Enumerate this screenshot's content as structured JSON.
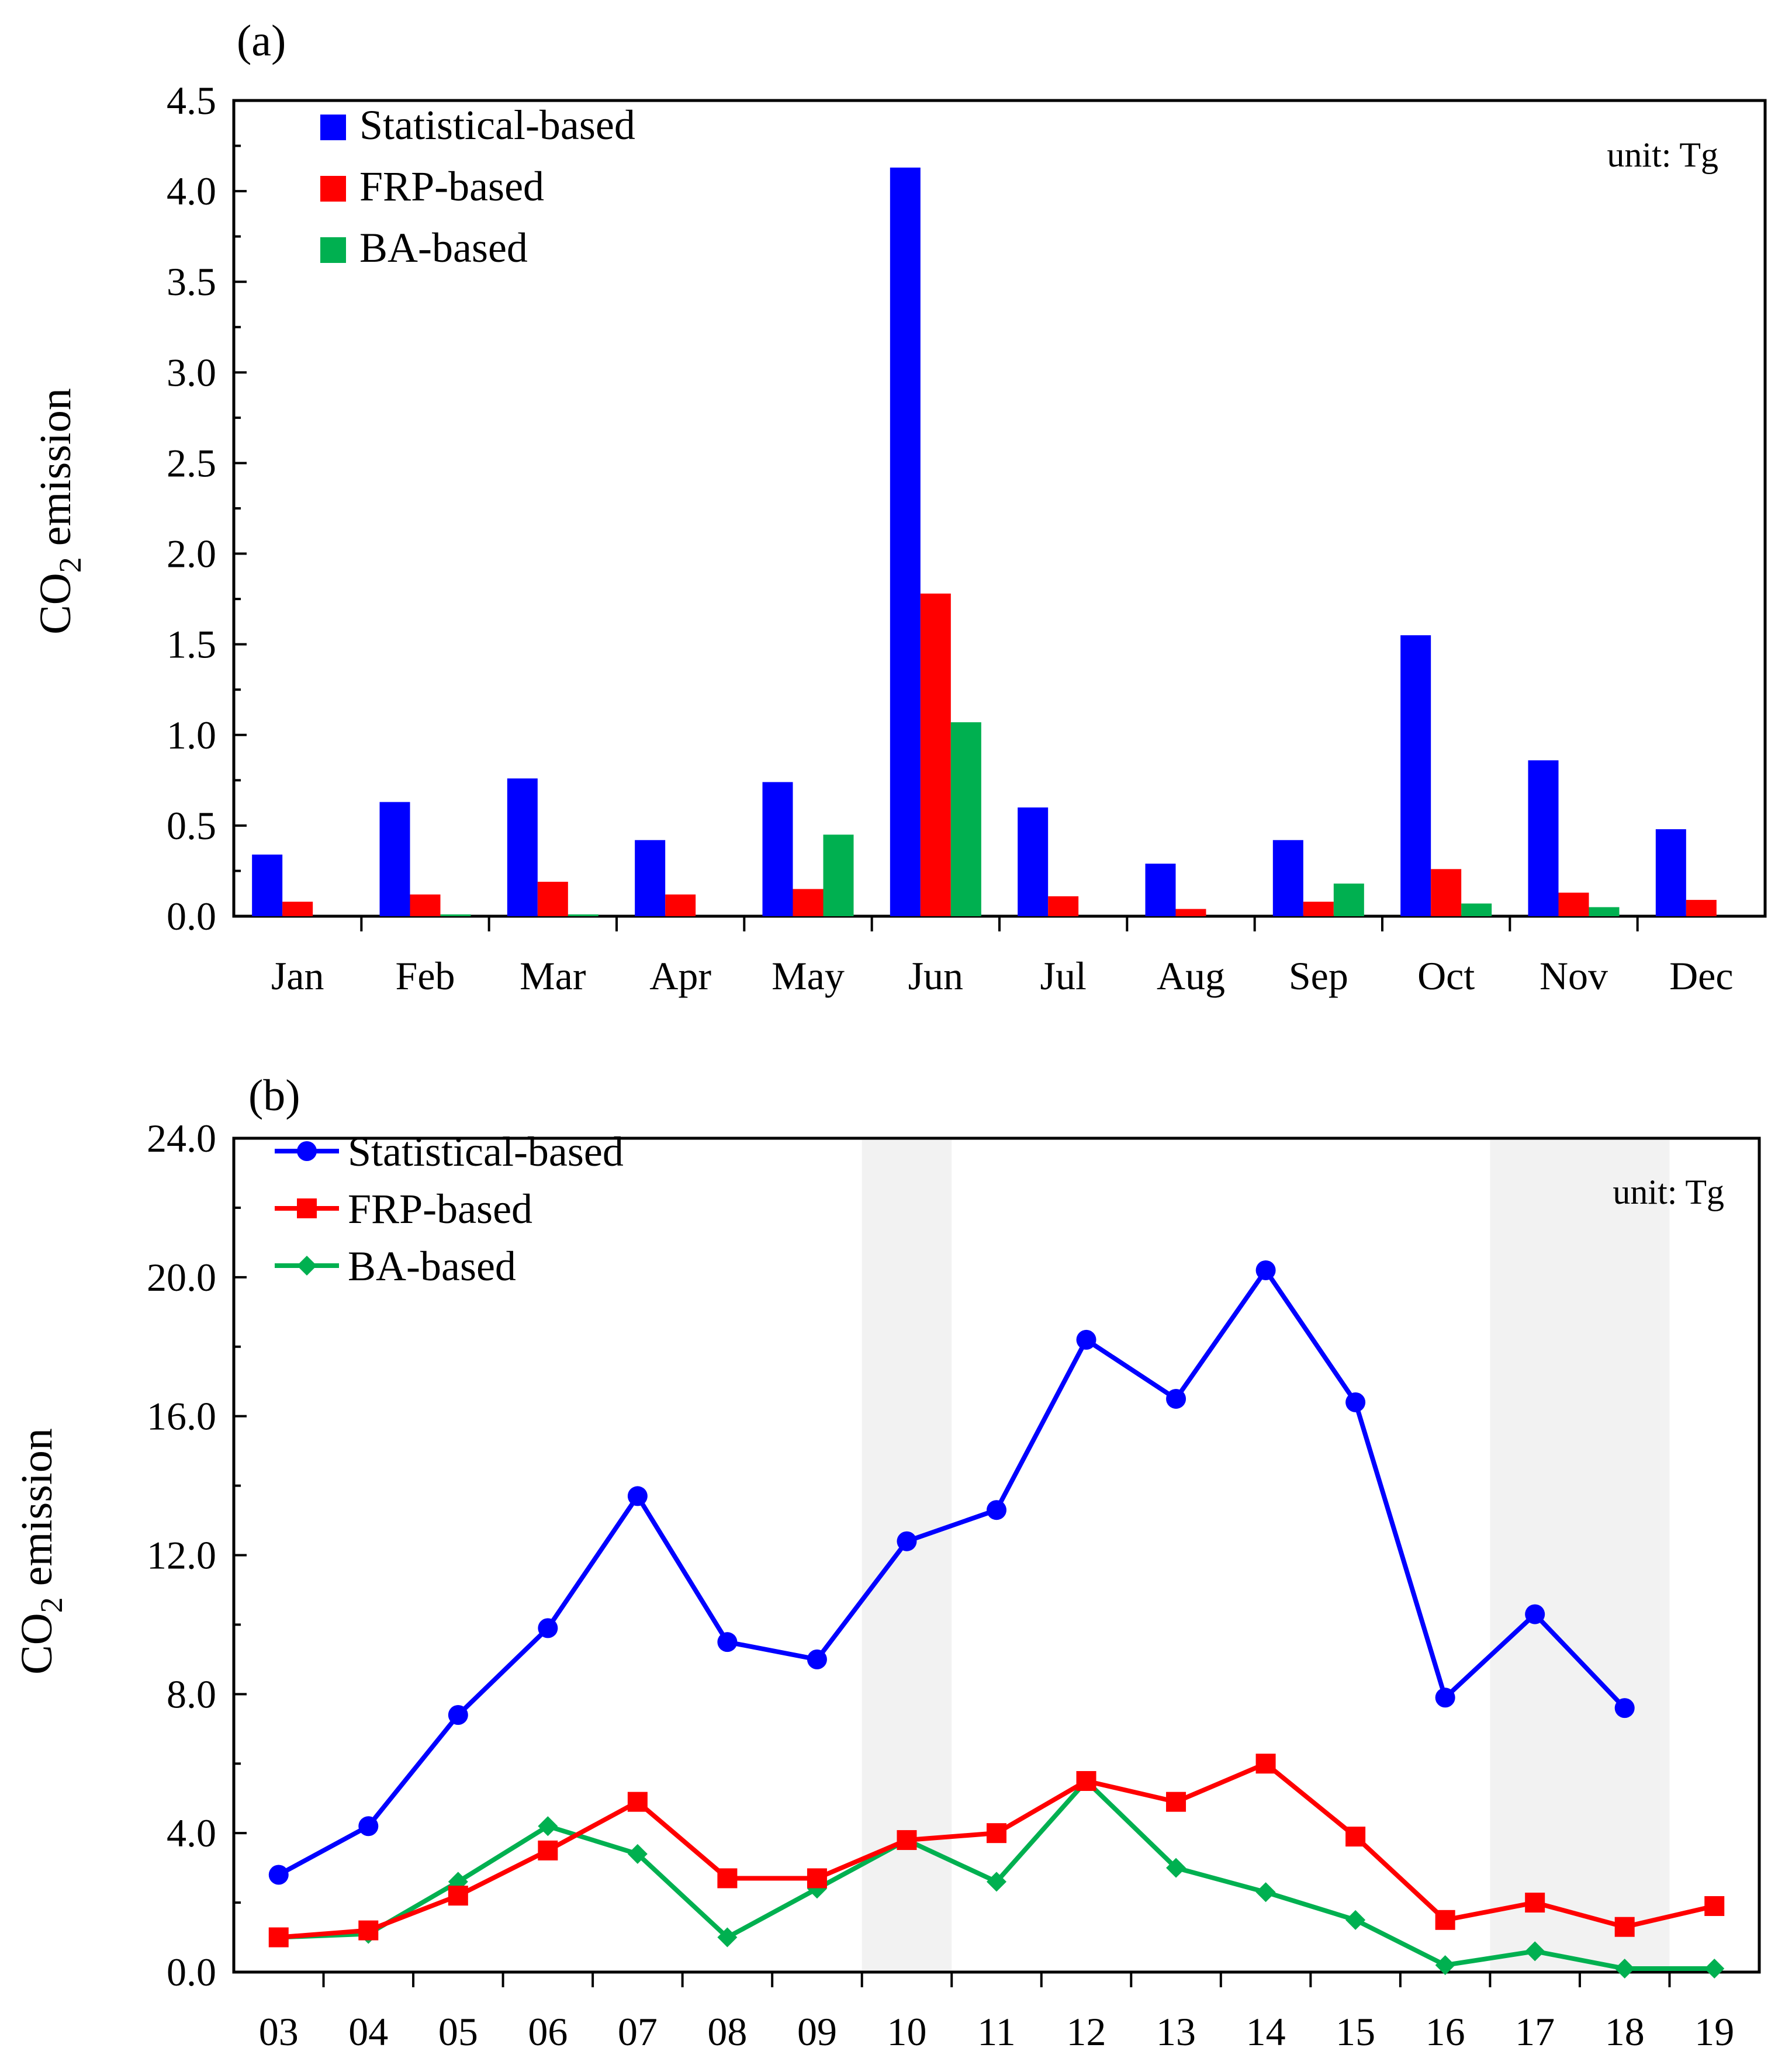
{
  "figure": {
    "unit_label": "unit: Tg"
  },
  "chart_data": [
    {
      "type": "bar",
      "panel_label": "(a)",
      "title": "",
      "xlabel": "",
      "ylabel": "CO2 emission",
      "ylabel_main": "CO",
      "ylabel_sub": "2",
      "ylabel_rest": " emission",
      "unit": "unit: Tg",
      "ylim": [
        0,
        4.5
      ],
      "yticks": [
        "0.0",
        "0.5",
        "1.0",
        "1.5",
        "2.0",
        "2.5",
        "3.0",
        "3.5",
        "4.0",
        "4.5"
      ],
      "ytick_values": [
        0,
        0.5,
        1.0,
        1.5,
        2.0,
        2.5,
        3.0,
        3.5,
        4.0,
        4.5
      ],
      "categories": [
        "Jan",
        "Feb",
        "Mar",
        "Apr",
        "May",
        "Jun",
        "Jul",
        "Aug",
        "Sep",
        "Oct",
        "Nov",
        "Dec"
      ],
      "legend_position": "top-left",
      "series": [
        {
          "name": "Statistical-based",
          "color": "#0000ff",
          "values": [
            0.34,
            0.63,
            0.76,
            0.42,
            0.74,
            4.13,
            0.6,
            0.29,
            0.42,
            1.55,
            0.86,
            0.48
          ]
        },
        {
          "name": "FRP-based",
          "color": "#ff0000",
          "values": [
            0.08,
            0.12,
            0.19,
            0.12,
            0.15,
            1.78,
            0.11,
            0.04,
            0.08,
            0.26,
            0.13,
            0.09
          ]
        },
        {
          "name": "BA-based",
          "color": "#00b050",
          "values": [
            0.0,
            0.01,
            0.01,
            0.0,
            0.45,
            1.07,
            0.0,
            0.0,
            0.18,
            0.07,
            0.05,
            0.0
          ]
        }
      ]
    },
    {
      "type": "line",
      "panel_label": "(b)",
      "title": "",
      "xlabel": "",
      "ylabel": "CO2 emission",
      "ylabel_main": "CO",
      "ylabel_sub": "2",
      "ylabel_rest": " emission",
      "unit": "unit: Tg",
      "ylim": [
        0,
        24
      ],
      "yticks": [
        "0.0",
        "4.0",
        "8.0",
        "12.0",
        "16.0",
        "20.0",
        "24.0"
      ],
      "ytick_values": [
        0,
        4,
        8,
        12,
        16,
        20,
        24
      ],
      "x": [
        "03",
        "04",
        "05",
        "06",
        "07",
        "08",
        "09",
        "10",
        "11",
        "12",
        "13",
        "14",
        "15",
        "16",
        "17",
        "18",
        "19"
      ],
      "shaded_regions": [
        [
          7.0,
          8.0
        ],
        [
          14.0,
          16.0
        ]
      ],
      "legend_position": "top-left",
      "series": [
        {
          "name": "Statistical-based",
          "color": "#0000ff",
          "marker": "circle",
          "values": [
            2.8,
            4.2,
            7.4,
            9.9,
            13.7,
            9.5,
            9.0,
            12.4,
            13.3,
            18.2,
            16.5,
            20.2,
            16.4,
            7.9,
            10.3,
            7.6,
            null
          ]
        },
        {
          "name": "FRP-based",
          "color": "#ff0000",
          "marker": "square",
          "values": [
            1.0,
            1.2,
            2.2,
            3.5,
            4.9,
            2.7,
            2.7,
            3.8,
            4.0,
            5.5,
            4.9,
            6.0,
            3.9,
            1.5,
            2.0,
            1.3,
            1.9
          ]
        },
        {
          "name": "BA-based",
          "color": "#00b050",
          "marker": "diamond",
          "values": [
            1.0,
            1.1,
            2.6,
            4.2,
            3.4,
            1.0,
            2.4,
            3.8,
            2.6,
            5.5,
            3.0,
            2.3,
            1.5,
            0.2,
            0.6,
            0.1,
            0.1
          ]
        }
      ]
    }
  ]
}
